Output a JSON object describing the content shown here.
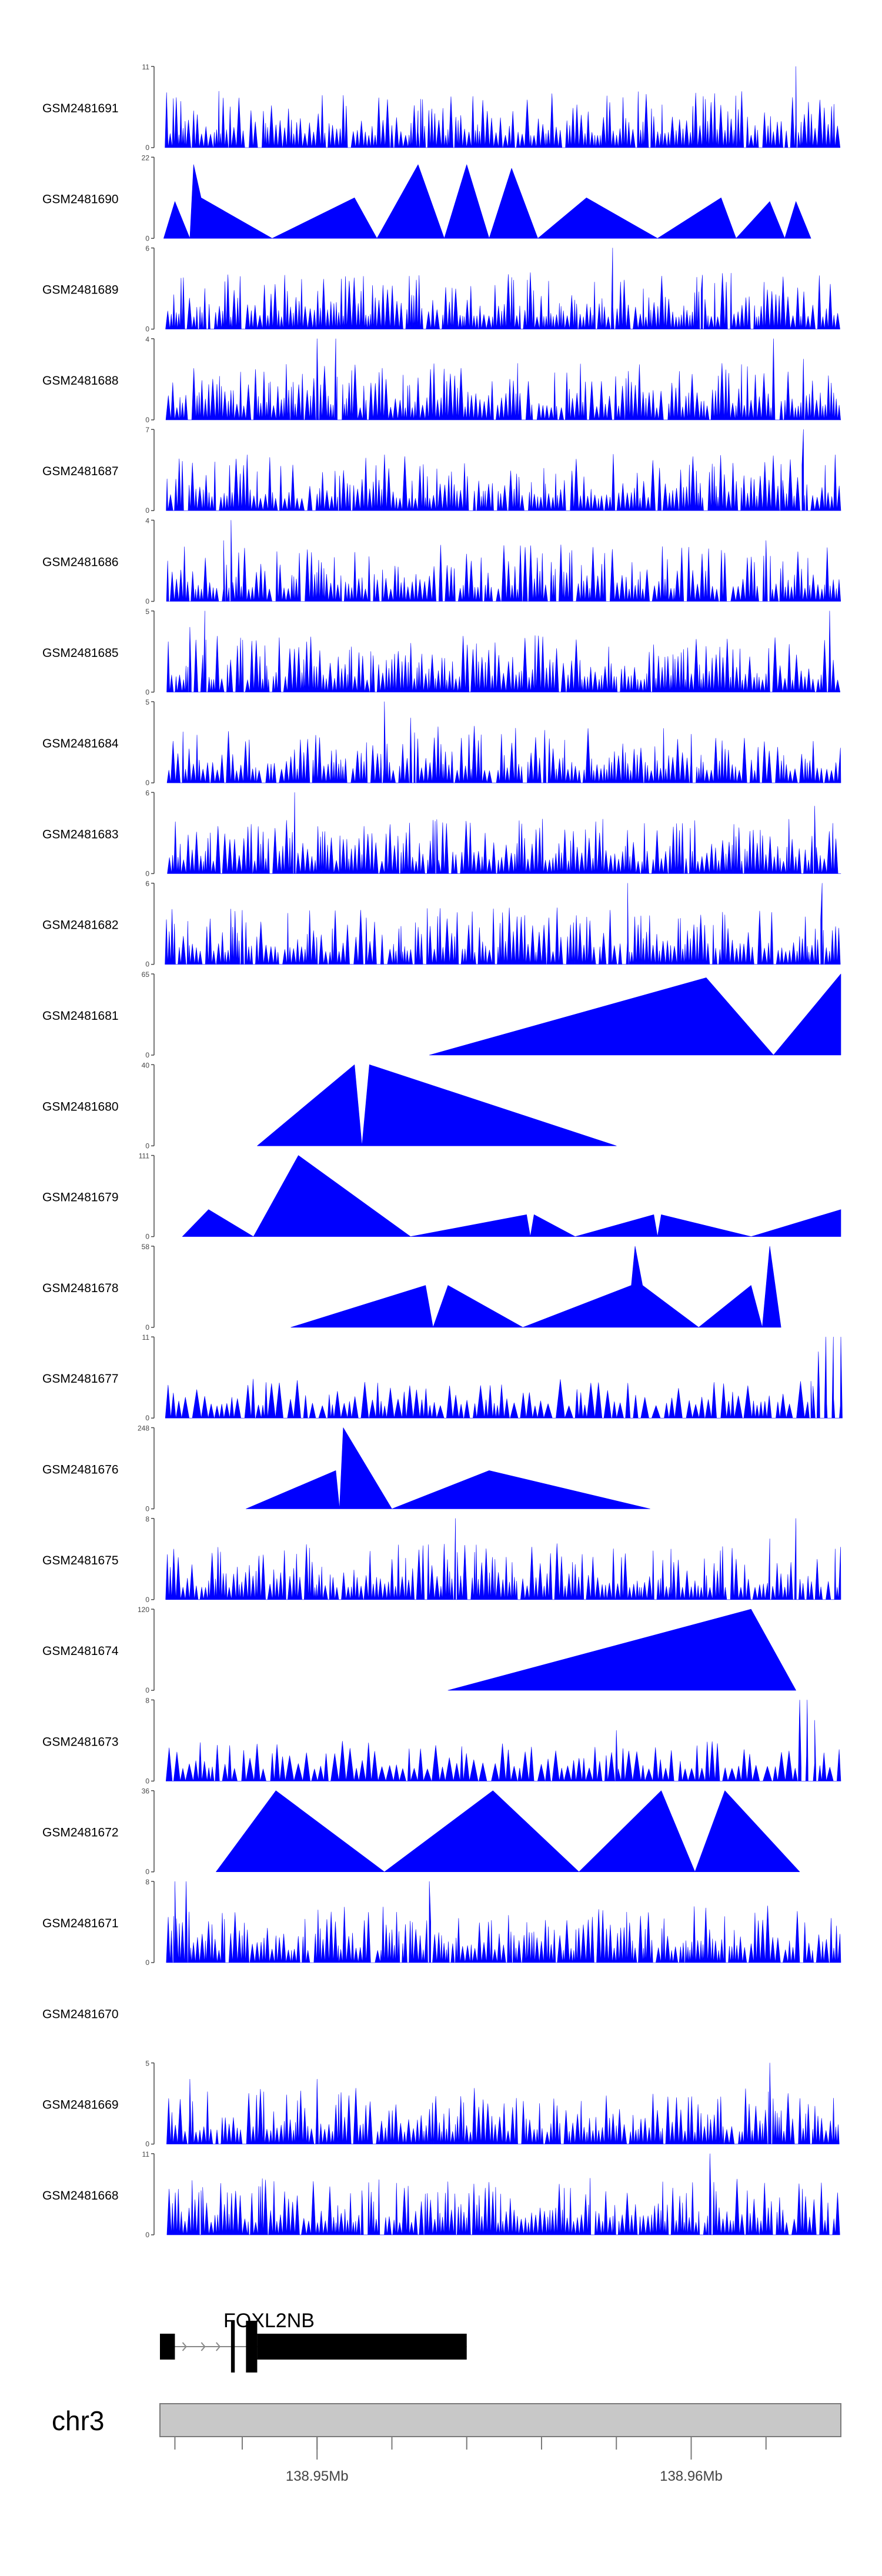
{
  "chart_data": {
    "type": "area",
    "title": "",
    "chromosome": "chr3",
    "gene": {
      "name": "FOXL2NB",
      "strand": "+",
      "start": 138.9458,
      "end": 138.954,
      "exons": [
        [
          138.9458,
          138.9462
        ],
        [
          138.9477,
          138.9478
        ],
        [
          138.9481,
          138.9484
        ],
        [
          138.9484,
          138.954
        ]
      ]
    },
    "x_range": [
      138.9458,
      138.964
    ],
    "x_ticks": [
      138.9462,
      138.948,
      138.95,
      138.952,
      138.954,
      138.956,
      138.958,
      138.96,
      138.962
    ],
    "x_tick_labels": [
      {
        "value": 138.95,
        "label": "138.95Mb"
      },
      {
        "value": 138.96,
        "label": "138.96Mb"
      }
    ],
    "tracks": [
      {
        "name": "GSM2481691",
        "ymax": 11,
        "ymax_label": "11",
        "ymin_label": "0",
        "seed": 101,
        "style": "dense",
        "peaks": [
          [
            138.9527,
            5
          ],
          [
            138.9628,
            11
          ],
          [
            138.952,
            3
          ]
        ]
      },
      {
        "name": "GSM2481690",
        "ymax": 22,
        "ymax_label": "22",
        "ymin_label": "0",
        "style": "points",
        "points": [
          [
            138.9459,
            0
          ],
          [
            138.9462,
            10
          ],
          [
            138.9466,
            0
          ],
          [
            138.9467,
            20
          ],
          [
            138.9469,
            11
          ],
          [
            138.9488,
            0
          ],
          [
            138.951,
            11
          ],
          [
            138.9516,
            0
          ],
          [
            138.9527,
            20
          ],
          [
            138.9534,
            0
          ],
          [
            138.954,
            20
          ],
          [
            138.9546,
            0
          ],
          [
            138.9552,
            19
          ],
          [
            138.9559,
            0
          ],
          [
            138.9572,
            11
          ],
          [
            138.9591,
            0
          ],
          [
            138.9608,
            11
          ],
          [
            138.9612,
            0
          ],
          [
            138.9621,
            10
          ],
          [
            138.9625,
            0
          ],
          [
            138.9628,
            10
          ],
          [
            138.9632,
            0
          ]
        ]
      },
      {
        "name": "GSM2481689",
        "ymax": 6,
        "ymax_label": "6",
        "ymin_label": "0",
        "seed": 303,
        "style": "dense",
        "peaks": [
          [
            138.9579,
            6
          ],
          [
            138.9603,
            4
          ],
          [
            138.947,
            3
          ]
        ]
      },
      {
        "name": "GSM2481688",
        "ymax": 4,
        "ymax_label": "4",
        "ymin_label": "0",
        "seed": 404,
        "style": "dense",
        "peaks": [
          [
            138.95,
            4
          ],
          [
            138.9505,
            4
          ],
          [
            138.9622,
            4
          ],
          [
            138.963,
            3
          ]
        ]
      },
      {
        "name": "GSM2481687",
        "ymax": 7,
        "ymax_label": "7",
        "ymin_label": "0",
        "seed": 505,
        "style": "dense",
        "peaks": [
          [
            138.963,
            7
          ],
          [
            138.9624,
            4
          ],
          [
            138.9506,
            3
          ]
        ]
      },
      {
        "name": "GSM2481686",
        "ymax": 4,
        "ymax_label": "4",
        "ymin_label": "0",
        "seed": 606,
        "style": "dense",
        "peaks": [
          [
            138.9477,
            4
          ],
          [
            138.9475,
            3
          ],
          [
            138.962,
            3
          ]
        ]
      },
      {
        "name": "GSM2481685",
        "ymax": 5,
        "ymax_label": "5",
        "ymin_label": "0",
        "seed": 707,
        "style": "dense",
        "peaks": [
          [
            138.947,
            5
          ],
          [
            138.9637,
            5
          ],
          [
            138.9466,
            4
          ]
        ]
      },
      {
        "name": "GSM2481684",
        "ymax": 5,
        "ymax_label": "5",
        "ymin_label": "0",
        "seed": 808,
        "style": "dense",
        "peaks": [
          [
            138.9518,
            5
          ],
          [
            138.9525,
            4
          ],
          [
            138.96,
            3
          ]
        ]
      },
      {
        "name": "GSM2481683",
        "ymax": 6,
        "ymax_label": "6",
        "ymin_label": "0",
        "seed": 909,
        "style": "dense",
        "peaks": [
          [
            138.9494,
            6
          ],
          [
            138.9633,
            5
          ],
          [
            138.9532,
            4
          ]
        ]
      },
      {
        "name": "GSM2481682",
        "ymax": 6,
        "ymax_label": "6",
        "ymin_label": "0",
        "seed": 111,
        "style": "dense",
        "peaks": [
          [
            138.9583,
            6
          ],
          [
            138.9635,
            6
          ],
          [
            138.948,
            4
          ]
        ]
      },
      {
        "name": "GSM2481681",
        "ymax": 65,
        "ymax_label": "65",
        "ymin_label": "0",
        "style": "points",
        "points": [
          [
            138.953,
            0
          ],
          [
            138.9604,
            62
          ],
          [
            138.9622,
            0
          ],
          [
            138.964,
            65
          ]
        ]
      },
      {
        "name": "GSM2481680",
        "ymax": 40,
        "ymax_label": "40",
        "ymin_label": "0",
        "style": "points",
        "points": [
          [
            138.9484,
            0
          ],
          [
            138.951,
            40
          ],
          [
            138.9512,
            0
          ],
          [
            138.9514,
            40
          ],
          [
            138.958,
            0
          ]
        ]
      },
      {
        "name": "GSM2481679",
        "ymax": 111,
        "ymax_label": "111",
        "ymin_label": "0",
        "style": "points",
        "points": [
          [
            138.9464,
            0
          ],
          [
            138.9471,
            37
          ],
          [
            138.9483,
            0
          ],
          [
            138.9495,
            111
          ],
          [
            138.9525,
            0
          ],
          [
            138.9556,
            30
          ],
          [
            138.9557,
            0
          ],
          [
            138.9558,
            30
          ],
          [
            138.9569,
            0
          ],
          [
            138.959,
            30
          ],
          [
            138.9591,
            0
          ],
          [
            138.9592,
            30
          ],
          [
            138.9616,
            0
          ],
          [
            138.964,
            37
          ]
        ]
      },
      {
        "name": "GSM2481678",
        "ymax": 58,
        "ymax_label": "58",
        "ymin_label": "0",
        "style": "points",
        "points": [
          [
            138.9493,
            0
          ],
          [
            138.9529,
            30
          ],
          [
            138.9531,
            0
          ],
          [
            138.9535,
            30
          ],
          [
            138.9555,
            0
          ],
          [
            138.9584,
            30
          ],
          [
            138.9585,
            58
          ],
          [
            138.9587,
            30
          ],
          [
            138.9602,
            0
          ],
          [
            138.9616,
            30
          ],
          [
            138.9619,
            0
          ],
          [
            138.9621,
            58
          ],
          [
            138.9624,
            0
          ]
        ]
      },
      {
        "name": "GSM2481677",
        "ymax": 11,
        "ymax_label": "11",
        "ymin_label": "0",
        "seed": 222,
        "style": "sparse",
        "peaks": [
          [
            138.9636,
            11
          ],
          [
            138.9638,
            11
          ],
          [
            138.964,
            11
          ],
          [
            138.9634,
            9
          ],
          [
            138.9632,
            5
          ]
        ]
      },
      {
        "name": "GSM2481676",
        "ymax": 248,
        "ymax_label": "248",
        "ymin_label": "0",
        "style": "points",
        "points": [
          [
            138.9481,
            0
          ],
          [
            138.9505,
            117
          ],
          [
            138.9506,
            0
          ],
          [
            138.9507,
            248
          ],
          [
            138.952,
            0
          ],
          [
            138.9546,
            117
          ],
          [
            138.9589,
            0
          ]
        ]
      },
      {
        "name": "GSM2481675",
        "ymax": 8,
        "ymax_label": "8",
        "ymin_label": "0",
        "seed": 333,
        "style": "dense",
        "peaks": [
          [
            138.9537,
            8
          ],
          [
            138.9628,
            8
          ],
          [
            138.9621,
            6
          ]
        ]
      },
      {
        "name": "GSM2481674",
        "ymax": 120,
        "ymax_label": "120",
        "ymin_label": "0",
        "style": "points",
        "points": [
          [
            138.9535,
            0
          ],
          [
            138.9616,
            120
          ],
          [
            138.9628,
            0
          ]
        ]
      },
      {
        "name": "GSM2481673",
        "ymax": 8,
        "ymax_label": "8",
        "ymin_label": "0",
        "seed": 444,
        "style": "sparse",
        "peaks": [
          [
            138.9629,
            8
          ],
          [
            138.9631,
            8
          ],
          [
            138.9633,
            6
          ],
          [
            138.958,
            5
          ]
        ]
      },
      {
        "name": "GSM2481672",
        "ymax": 36,
        "ymax_label": "36",
        "ymin_label": "0",
        "style": "points",
        "points": [
          [
            138.9473,
            0
          ],
          [
            138.9489,
            36
          ],
          [
            138.9518,
            0
          ],
          [
            138.9547,
            36
          ],
          [
            138.957,
            0
          ],
          [
            138.9592,
            36
          ],
          [
            138.9601,
            0
          ],
          [
            138.9609,
            36
          ],
          [
            138.9629,
            0
          ]
        ]
      },
      {
        "name": "GSM2481671",
        "ymax": 8,
        "ymax_label": "8",
        "ymin_label": "0",
        "seed": 555,
        "style": "dense",
        "peaks": [
          [
            138.9462,
            8
          ],
          [
            138.9465,
            8
          ],
          [
            138.953,
            8
          ]
        ]
      },
      {
        "name": "GSM2481670",
        "ymax": null,
        "ymax_label": "",
        "ymin_label": "",
        "style": "empty"
      },
      {
        "name": "GSM2481669",
        "ymax": 5,
        "ymax_label": "5",
        "ymin_label": "0",
        "seed": 666,
        "style": "dense",
        "peaks": [
          [
            138.9621,
            5
          ],
          [
            138.9466,
            4
          ],
          [
            138.95,
            4
          ]
        ]
      },
      {
        "name": "GSM2481668",
        "ymax": 11,
        "ymax_label": "11",
        "ymin_label": "0",
        "seed": 777,
        "style": "dense",
        "peaks": [
          [
            138.9605,
            11
          ],
          [
            138.9469,
            6
          ],
          [
            138.9512,
            6
          ],
          [
            138.9615,
            6
          ]
        ]
      }
    ]
  }
}
